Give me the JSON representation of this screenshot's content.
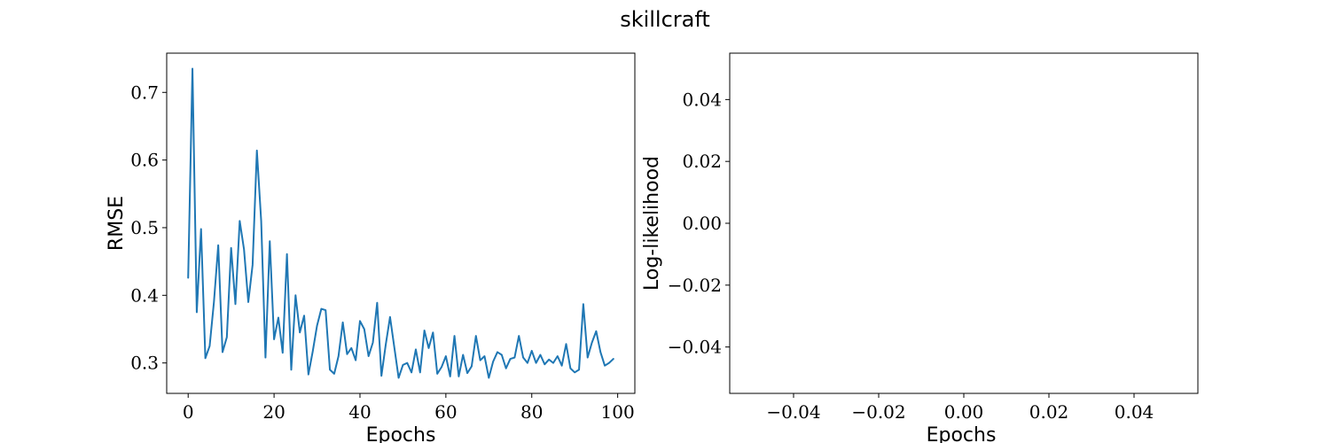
{
  "figure": {
    "title": "skillcraft"
  },
  "chart_data": [
    {
      "type": "line",
      "title": "",
      "xlabel": "Epochs",
      "ylabel": "RMSE",
      "xlim": [
        -5,
        104
      ],
      "ylim": [
        0.255,
        0.758
      ],
      "xticks": [
        0,
        20,
        40,
        60,
        80,
        100
      ],
      "xtick_labels": [
        "0",
        "20",
        "40",
        "60",
        "80",
        "100"
      ],
      "yticks": [
        0.3,
        0.4,
        0.5,
        0.6,
        0.7
      ],
      "ytick_labels": [
        "0.3",
        "0.4",
        "0.5",
        "0.6",
        "0.7"
      ],
      "grid": false,
      "series": [
        {
          "color": "#1f77b4",
          "x": [
            0,
            1,
            2,
            3,
            4,
            5,
            6,
            7,
            8,
            9,
            10,
            11,
            12,
            13,
            14,
            15,
            16,
            17,
            18,
            19,
            20,
            21,
            22,
            23,
            24,
            25,
            26,
            27,
            28,
            29,
            30,
            31,
            32,
            33,
            34,
            35,
            36,
            37,
            38,
            39,
            40,
            41,
            42,
            43,
            44,
            45,
            46,
            47,
            48,
            49,
            50,
            51,
            52,
            53,
            54,
            55,
            56,
            57,
            58,
            59,
            60,
            61,
            62,
            63,
            64,
            65,
            66,
            67,
            68,
            69,
            70,
            71,
            72,
            73,
            74,
            75,
            76,
            77,
            78,
            79,
            80,
            81,
            82,
            83,
            84,
            85,
            86,
            87,
            88,
            89,
            90,
            91,
            92,
            93,
            94,
            95,
            96,
            97,
            98,
            99
          ],
          "values": [
            0.426,
            0.735,
            0.375,
            0.498,
            0.307,
            0.325,
            0.39,
            0.474,
            0.316,
            0.338,
            0.47,
            0.387,
            0.51,
            0.468,
            0.39,
            0.445,
            0.614,
            0.51,
            0.308,
            0.48,
            0.335,
            0.367,
            0.315,
            0.461,
            0.29,
            0.4,
            0.345,
            0.37,
            0.283,
            0.317,
            0.355,
            0.38,
            0.378,
            0.29,
            0.284,
            0.31,
            0.36,
            0.313,
            0.322,
            0.304,
            0.362,
            0.35,
            0.31,
            0.33,
            0.389,
            0.281,
            0.327,
            0.368,
            0.323,
            0.278,
            0.297,
            0.3,
            0.286,
            0.32,
            0.286,
            0.348,
            0.322,
            0.345,
            0.284,
            0.294,
            0.31,
            0.28,
            0.34,
            0.28,
            0.312,
            0.285,
            0.295,
            0.34,
            0.304,
            0.31,
            0.278,
            0.302,
            0.316,
            0.312,
            0.292,
            0.306,
            0.308,
            0.34,
            0.308,
            0.3,
            0.318,
            0.3,
            0.312,
            0.298,
            0.305,
            0.3,
            0.31,
            0.296,
            0.328,
            0.292,
            0.286,
            0.29,
            0.387,
            0.308,
            0.33,
            0.347,
            0.316,
            0.296,
            0.3,
            0.306
          ]
        }
      ]
    },
    {
      "type": "line",
      "title": "",
      "xlabel": "Epochs",
      "ylabel": "Log-likelihood",
      "xlim": [
        -0.055,
        0.055
      ],
      "ylim": [
        -0.055,
        0.055
      ],
      "xticks": [
        -0.04,
        -0.02,
        0.0,
        0.02,
        0.04
      ],
      "xtick_labels": [
        "−0.04",
        "−0.02",
        "0.00",
        "0.02",
        "0.04"
      ],
      "yticks": [
        0.04,
        0.02,
        0.0,
        -0.02,
        -0.04
      ],
      "ytick_labels": [
        "0.04",
        "0.02",
        "0.00",
        "−0.02",
        "−0.04"
      ],
      "grid": false,
      "series": []
    }
  ]
}
